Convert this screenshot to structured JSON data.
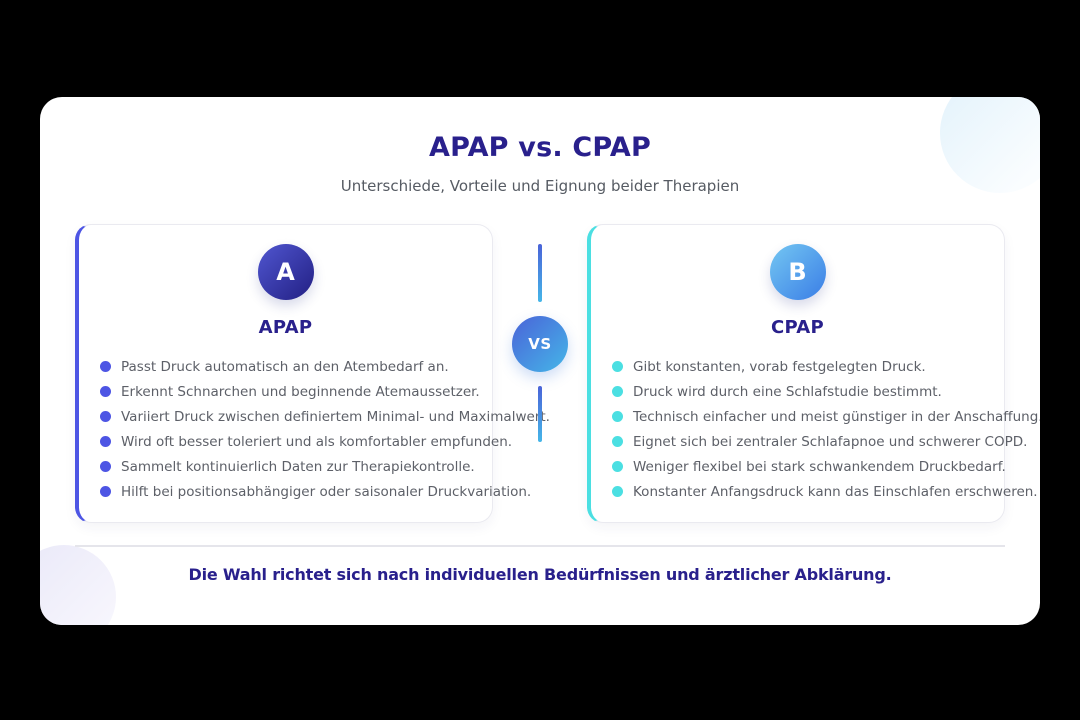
{
  "colors": {
    "navy": "#29208c",
    "subtitle_gray": "#565b63",
    "item_gray": "#5d6068",
    "apap_accent": "#4d55e4",
    "cpap_accent": "#4bdfe2",
    "badge_a_from": "#5056d0",
    "badge_a_to": "#221f83",
    "badge_b_from": "#74c7f2",
    "badge_b_to": "#3a7de6",
    "vs_from": "#4a63d8",
    "vs_to": "#45b6e8"
  },
  "header": {
    "title": "APAP vs. CPAP",
    "subtitle": "Unterschiede, Vorteile und Eignung beider Therapien"
  },
  "vs_badge": "VS",
  "columns": [
    {
      "badge": "A",
      "title": "APAP",
      "items": [
        "Passt Druck automatisch an den Atembedarf an.",
        "Erkennt Schnarchen und beginnende Atemaussetzer.",
        "Variiert Druck zwischen definiertem Minimal- und Maximalwert.",
        "Wird oft besser toleriert und als komfortabler empfunden.",
        "Sammelt kontinuierlich Daten zur Therapiekontrolle.",
        "Hilft bei positionsabhängiger oder saisonaler Druckvariation."
      ]
    },
    {
      "badge": "B",
      "title": "CPAP",
      "items": [
        "Gibt konstanten, vorab festgelegten Druck.",
        "Druck wird durch eine Schlafstudie bestimmt.",
        "Technisch einfacher und meist günstiger in der Anschaffung.",
        "Eignet sich bei zentraler Schlafapnoe und schwerer COPD.",
        "Weniger flexibel bei stark schwankendem Druckbedarf.",
        "Konstanter Anfangsdruck kann das Einschlafen erschweren."
      ]
    }
  ],
  "footer": {
    "note": "Die Wahl richtet sich nach individuellen Bedürfnissen und ärztlicher Abklärung."
  }
}
